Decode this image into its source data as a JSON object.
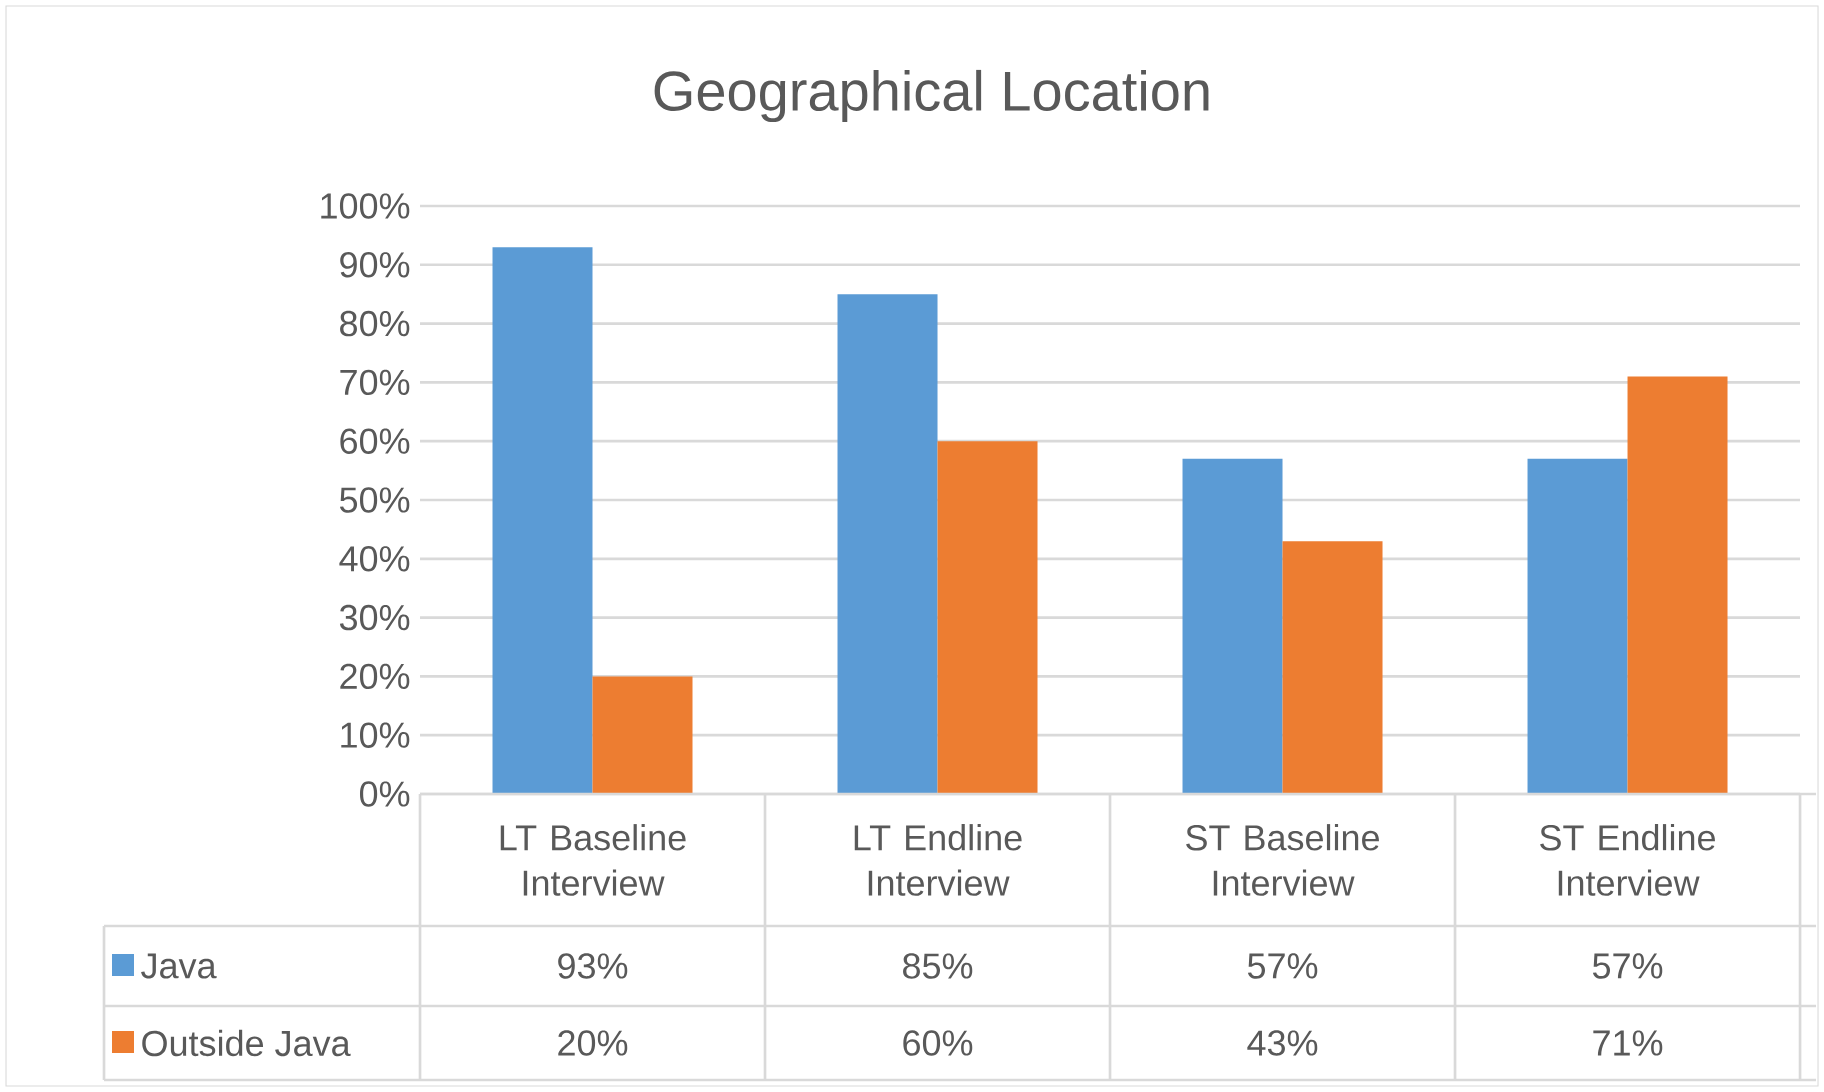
{
  "chart_data": {
    "type": "bar",
    "title": "Geographical Location",
    "categories": [
      "LT Baseline Interview",
      "LT Endline Interview",
      "ST Baseline Interview",
      "ST Endline Interview"
    ],
    "series": [
      {
        "name": "Java",
        "color": "#5b9bd5",
        "values": [
          93,
          85,
          57,
          57
        ],
        "value_labels": [
          "93%",
          "85%",
          "57%",
          "57%"
        ]
      },
      {
        "name": "Outside Java",
        "color": "#ed7d31",
        "values": [
          20,
          60,
          43,
          71
        ],
        "value_labels": [
          "20%",
          "60%",
          "43%",
          "71%"
        ]
      }
    ],
    "ylim": [
      0,
      100
    ],
    "yticks": [
      {
        "value": 0,
        "label": "0%"
      },
      {
        "value": 10,
        "label": "10%"
      },
      {
        "value": 20,
        "label": "20%"
      },
      {
        "value": 30,
        "label": "30%"
      },
      {
        "value": 40,
        "label": "40%"
      },
      {
        "value": 50,
        "label": "50%"
      },
      {
        "value": 60,
        "label": "60%"
      },
      {
        "value": 70,
        "label": "70%"
      },
      {
        "value": 80,
        "label": "80%"
      },
      {
        "value": 90,
        "label": "90%"
      },
      {
        "value": 100,
        "label": "100%"
      }
    ],
    "grid": "y",
    "legend": "bottom"
  }
}
